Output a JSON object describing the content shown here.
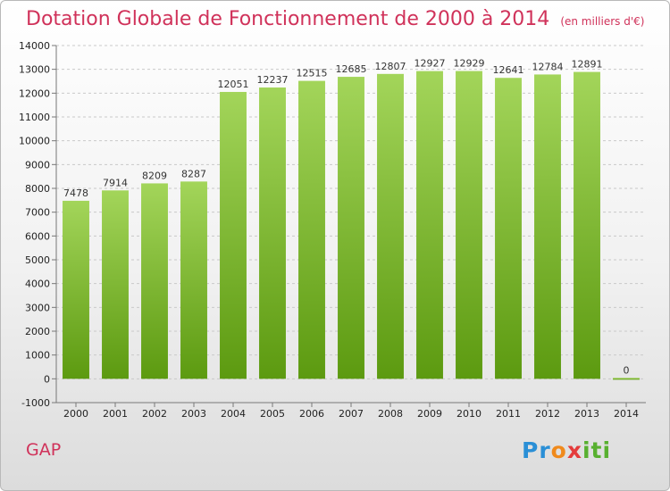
{
  "header": {
    "title": "Dotation Globale de Fonctionnement de 2000 à 2014",
    "unit": "(en milliers d'€)"
  },
  "footer": {
    "commune": "GAP",
    "brand": [
      "Pr",
      "o",
      "x",
      "iti"
    ]
  },
  "colors": {
    "title": "#d0325a",
    "bar_top": "#a3d55a",
    "bar_bottom": "#5c9a10"
  },
  "chart_data": {
    "type": "bar",
    "title": "Dotation Globale de Fonctionnement de 2000 à 2014",
    "subtitle": "(en milliers d'€)",
    "categories": [
      "2000",
      "2001",
      "2002",
      "2003",
      "2004",
      "2005",
      "2006",
      "2007",
      "2008",
      "2009",
      "2010",
      "2011",
      "2012",
      "2013",
      "2014"
    ],
    "values": [
      7478,
      7914,
      8209,
      8287,
      12051,
      12237,
      12515,
      12685,
      12807,
      12927,
      12929,
      12641,
      12784,
      12891,
      0
    ],
    "ylim": [
      -1000,
      14000
    ],
    "yticks": [
      -1000,
      0,
      1000,
      2000,
      3000,
      4000,
      5000,
      6000,
      7000,
      8000,
      9000,
      10000,
      11000,
      12000,
      13000,
      14000
    ],
    "grid": true,
    "legend": "none"
  }
}
